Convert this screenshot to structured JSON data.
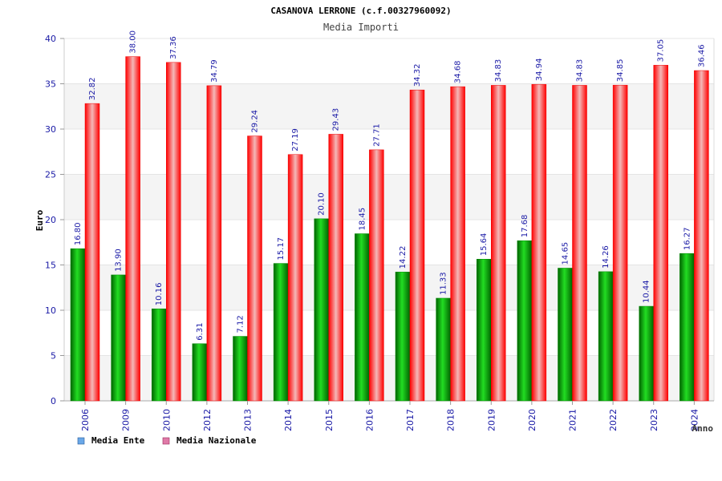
{
  "chart_data": {
    "type": "bar",
    "title": "CASANOVA LERRONE (c.f.00327960092)",
    "subtitle": "Media Importi",
    "ylabel": "Euro",
    "xlabel": "Anno",
    "ylim": [
      0,
      40
    ],
    "yticks": [
      0,
      5,
      10,
      15,
      20,
      25,
      30,
      35,
      40
    ],
    "grid": true,
    "legend_position": "bottom-left",
    "categories": [
      "2006",
      "2009",
      "2010",
      "2012",
      "2013",
      "2014",
      "2015",
      "2016",
      "2017",
      "2018",
      "2019",
      "2020",
      "2021",
      "2022",
      "2023",
      "2024"
    ],
    "series": [
      {
        "name": "Media Ente",
        "color": "#00b400",
        "legend_color": "#6aa8e8",
        "values": [
          16.8,
          13.9,
          10.16,
          6.31,
          7.12,
          15.17,
          20.1,
          18.45,
          14.22,
          11.33,
          15.64,
          17.68,
          14.65,
          14.26,
          10.44,
          16.27
        ],
        "labels": [
          "16.80",
          "13.90",
          "10.16",
          "6.31",
          "7.12",
          "15.17",
          "20.10",
          "18.45",
          "14.22",
          "11.33",
          "15.64",
          "17.68",
          "14.65",
          "14.26",
          "10.44",
          "16.27"
        ]
      },
      {
        "name": "Media Nazionale",
        "color": "#ff0000",
        "legend_color": "#e07aa8",
        "values": [
          32.82,
          38.0,
          37.36,
          34.79,
          29.24,
          27.19,
          29.43,
          27.71,
          34.32,
          34.68,
          34.83,
          34.94,
          34.83,
          34.85,
          37.05,
          36.46
        ],
        "labels": [
          "32.82",
          "38.00",
          "37.36",
          "34.79",
          "29.24",
          "27.19",
          "29.43",
          "27.71",
          "34.32",
          "34.68",
          "34.83",
          "34.94",
          "34.83",
          "34.85",
          "37.05",
          "36.46"
        ]
      }
    ]
  }
}
